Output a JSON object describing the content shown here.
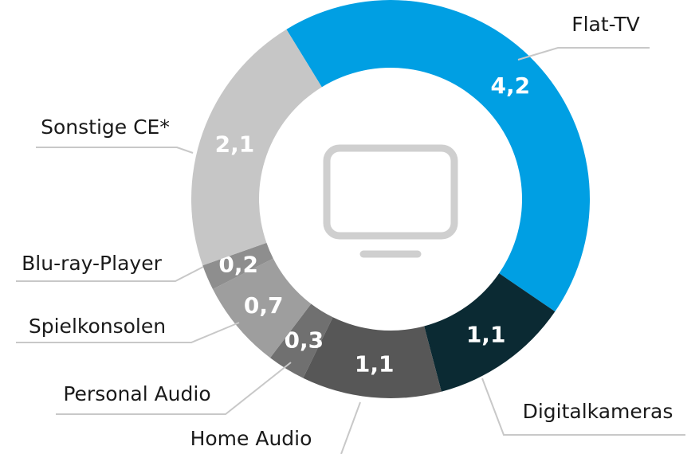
{
  "chart_data": {
    "type": "donut",
    "categories": [
      "Flat-TV",
      "Digitalkameras",
      "Home Audio",
      "Personal Audio",
      "Spielkonsolen",
      "Blu-ray-Player",
      "Sonstige CE*"
    ],
    "values": [
      4.2,
      1.1,
      1.1,
      0.3,
      0.7,
      0.2,
      2.1
    ],
    "value_labels": [
      "4,2",
      "1,1",
      "1,1",
      "0,3",
      "0,7",
      "0,2",
      "2,1"
    ],
    "colors": [
      "#009fe3",
      "#0b2a33",
      "#575757",
      "#707070",
      "#9e9e9e",
      "#8e8e8e",
      "#c6c6c6"
    ]
  }
}
